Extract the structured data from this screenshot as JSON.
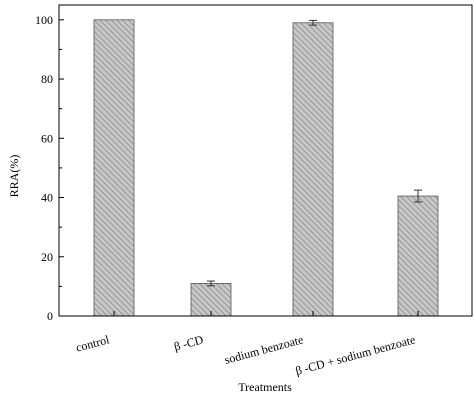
{
  "chart_data": {
    "type": "bar",
    "categories": [
      "control",
      "β -CD",
      "sodium benzoate",
      "β -CD + sodium benzoate"
    ],
    "values": [
      100,
      11,
      99,
      40.5
    ],
    "errors": [
      0,
      0.8,
      0.8,
      2
    ],
    "title": "",
    "xlabel": "Treatments",
    "ylabel": "RRA(%)",
    "ylim": [
      0,
      105
    ],
    "yticks": [
      0,
      20,
      40,
      60,
      80,
      100
    ],
    "grid": false,
    "legend": "none",
    "bar_fill": "#c8c8c8",
    "bar_hatch_color": "#8a8a8a",
    "axis_color": "#000000"
  }
}
